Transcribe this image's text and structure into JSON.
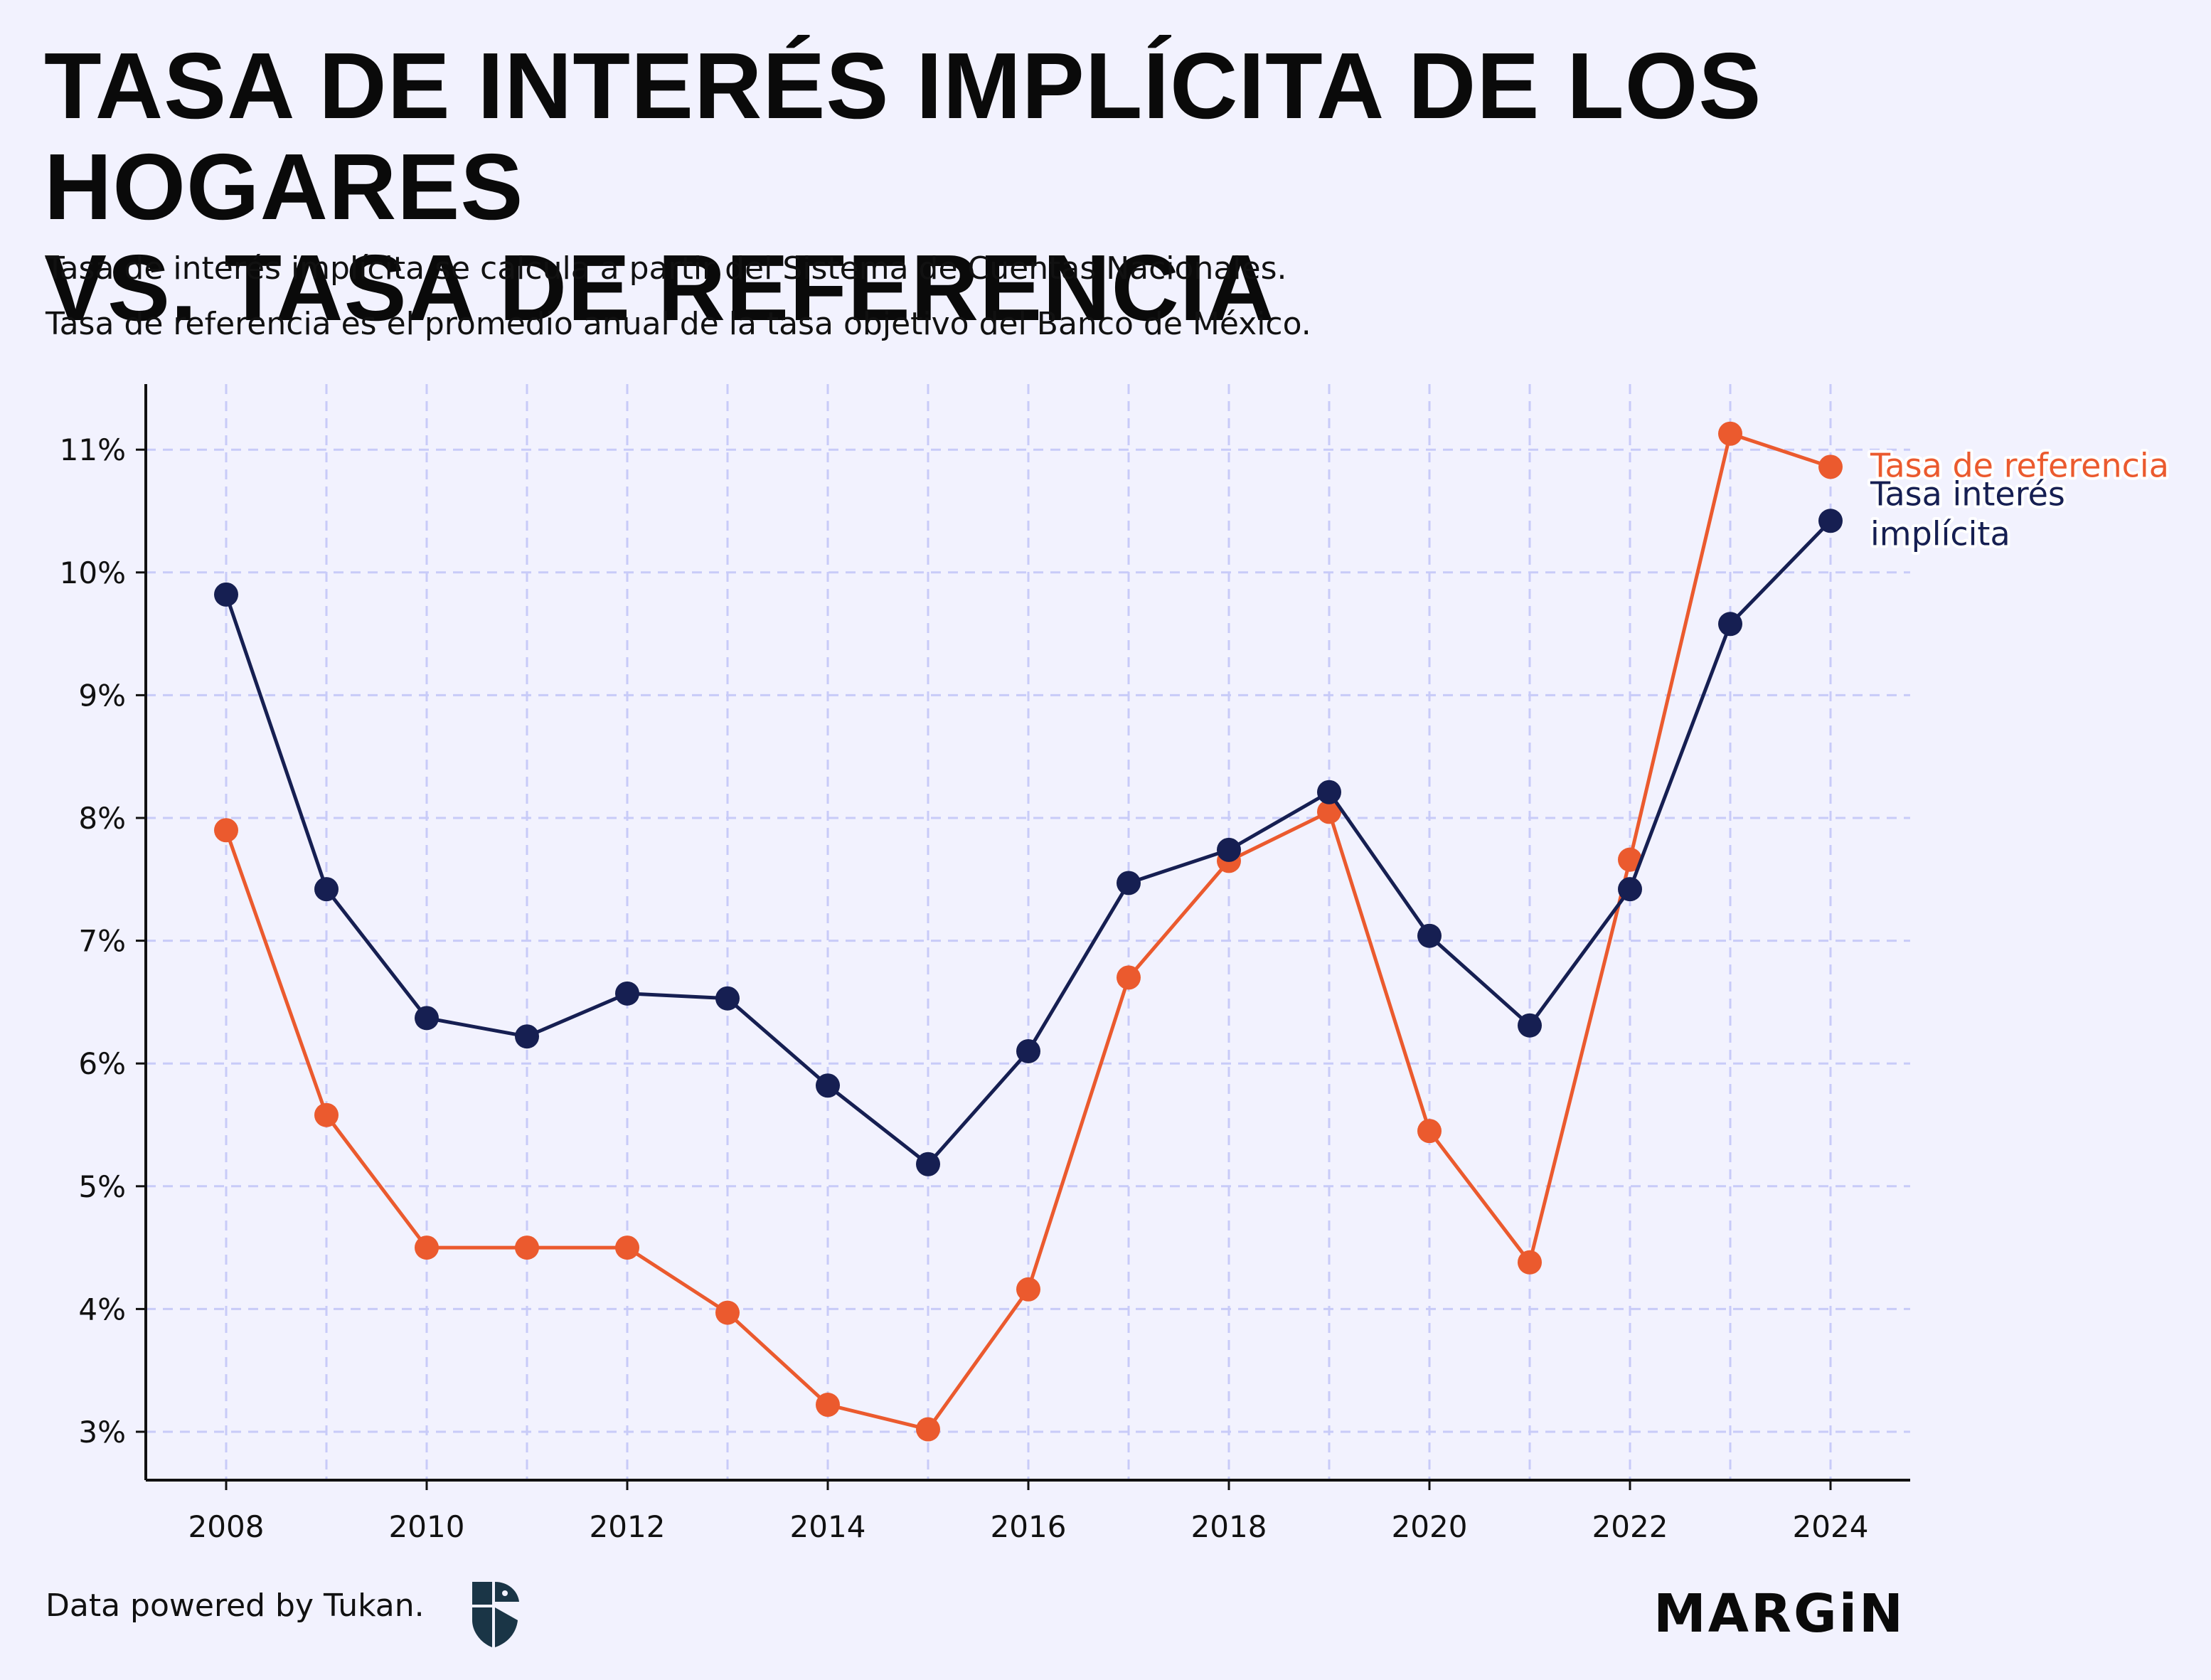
{
  "header": {
    "title_line1": "TASA DE INTERÉS IMPLÍCITA DE LOS HOGARES",
    "title_line2": "VS. TASA DE REFERENCIA",
    "subtitle_line1": "Tasa de interés implícita se calcula a partir del Sistema de Cuentas Nacionales.",
    "subtitle_line2": "Tasa de referencia es el promedio anual de la tasa objetivo del Banco de México."
  },
  "footer": {
    "credit": "Data powered by Tukan.",
    "brand": "MARGiN",
    "logo_icon": "tukan-logo-icon"
  },
  "colors": {
    "background": "#f2f2fe",
    "implicita": "#161f52",
    "referencia": "#eb5a2e",
    "grid": "#c8cbf8",
    "axis": "#111111"
  },
  "chart_data": {
    "type": "line",
    "title": "TASA DE INTERÉS IMPLÍCITA DE LOS HOGARES VS. TASA DE REFERENCIA",
    "x": [
      2008,
      2009,
      2010,
      2011,
      2012,
      2013,
      2014,
      2015,
      2016,
      2017,
      2018,
      2019,
      2020,
      2021,
      2022,
      2023,
      2024
    ],
    "x_ticks": [
      "2008",
      "2010",
      "2012",
      "2014",
      "2016",
      "2018",
      "2020",
      "2022",
      "2024"
    ],
    "y_ticks": [
      "3%",
      "4%",
      "5%",
      "6%",
      "7%",
      "8%",
      "9%",
      "10%",
      "11%"
    ],
    "ylim": [
      2.62,
      11.55
    ],
    "xlim": [
      2007.2,
      2024.8
    ],
    "grid": true,
    "series": [
      {
        "name": "Tasa interés",
        "name_line2": "implícita",
        "color": "#161f52",
        "values": [
          9.82,
          7.42,
          6.37,
          6.22,
          6.57,
          6.53,
          5.82,
          5.18,
          6.1,
          7.47,
          7.74,
          8.21,
          7.04,
          6.31,
          7.42,
          9.58,
          10.42
        ]
      },
      {
        "name": "Tasa de referencia",
        "color": "#eb5a2e",
        "values": [
          7.9,
          5.58,
          4.5,
          4.5,
          4.5,
          3.97,
          3.22,
          3.02,
          4.16,
          6.7,
          7.65,
          8.05,
          5.45,
          4.38,
          7.66,
          11.13,
          10.86
        ]
      }
    ]
  }
}
